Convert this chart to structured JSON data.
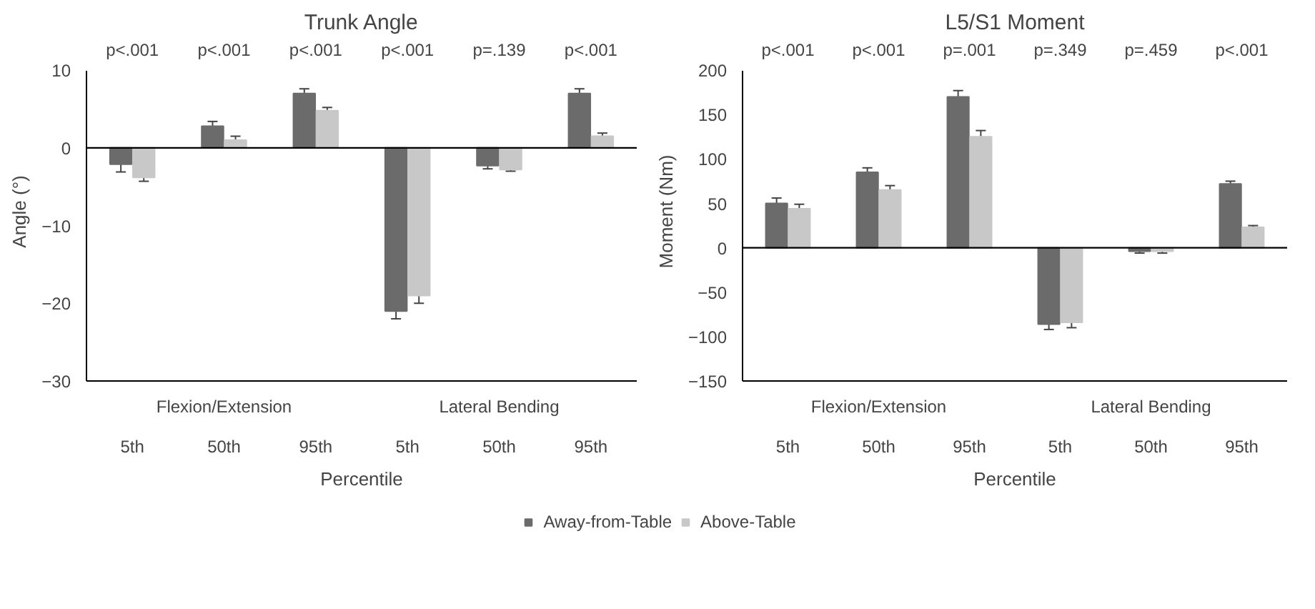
{
  "chart_data": [
    {
      "type": "bar",
      "title": "Trunk Angle",
      "xlabel": "Percentile",
      "ylabel": "Angle (°)",
      "categories": [
        "5th",
        "50th",
        "95th",
        "5th",
        "50th",
        "95th"
      ],
      "series": [
        {
          "name": "Away-from-Table",
          "color": "#6b6b6b",
          "values": [
            -2.1,
            2.8,
            7.0,
            -21,
            -2.3,
            7.0
          ],
          "errors": [
            1.0,
            0.6,
            0.6,
            1.0,
            0.4,
            0.6
          ]
        },
        {
          "name": "Above-Table",
          "color": "#c8c8c8",
          "values": [
            -3.8,
            1.0,
            4.8,
            -19,
            -2.8,
            1.5
          ],
          "errors": [
            0.5,
            0.5,
            0.4,
            1.0,
            0.2,
            0.4
          ]
        }
      ],
      "annotations": [
        "p<.001",
        "p<.001",
        "p<.001",
        "p<.001",
        "p=.139",
        "p<.001",
        "Flexion/Extension",
        "Lateral Bending"
      ],
      "ylim": [
        -30,
        10
      ],
      "yticks": [
        -30,
        -20,
        -10,
        0,
        10
      ],
      "legend": "bottom"
    },
    {
      "type": "bar",
      "title": "L5/S1 Moment",
      "xlabel": "Percentile",
      "ylabel": "Moment (Nm)",
      "categories": [
        "5th",
        "50th",
        "95th",
        "5th",
        "50th",
        "95th"
      ],
      "series": [
        {
          "color": "#6b6b6b",
          "values": [
            50,
            85,
            170,
            -86,
            -4,
            72
          ],
          "errors": [
            6,
            5,
            7,
            6,
            2,
            3
          ]
        },
        {
          "color": "#c8c8c8",
          "values": [
            44,
            65,
            125,
            -84,
            -4,
            23
          ],
          "errors": [
            5,
            5,
            7,
            6,
            2,
            2
          ]
        }
      ],
      "annotations": [
        "p<.001",
        "p<.001",
        "p=.001",
        "p=.349",
        "p=.459",
        "p<.001",
        "Flexion/Extension",
        "Lateral Bending"
      ],
      "ylim": [
        -150,
        200
      ],
      "yticks": [
        -150,
        -100,
        -50,
        0,
        50,
        100,
        150,
        200
      ]
    }
  ]
}
